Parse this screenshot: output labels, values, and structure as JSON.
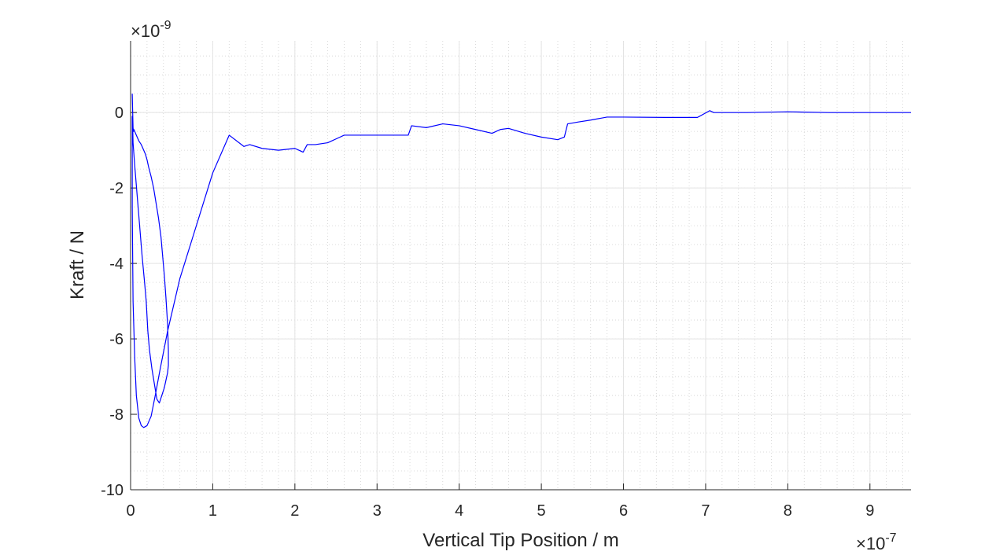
{
  "chart_data": {
    "type": "line",
    "title": "",
    "xlabel": "Vertical Tip Position / m",
    "ylabel": "Kraft / N",
    "x_multiplier": "×10",
    "x_exponent": "-7",
    "y_multiplier": "×10",
    "y_exponent": "-9",
    "xlim": [
      0,
      9.5
    ],
    "ylim": [
      -10,
      1.9
    ],
    "xticks": [
      0,
      1,
      2,
      3,
      4,
      5,
      6,
      7,
      8,
      9
    ],
    "xtick_labels": [
      "0",
      "1",
      "2",
      "3",
      "4",
      "5",
      "6",
      "7",
      "8",
      "9"
    ],
    "yticks": [
      -10,
      -8,
      -6,
      -4,
      -2,
      0
    ],
    "ytick_labels": [
      "-10",
      "-8",
      "-6",
      "-4",
      "-2",
      "0"
    ],
    "grid": true,
    "minor_grid": true,
    "line_color": "#0000ff",
    "series": [
      {
        "x": [
          0.02,
          0.03,
          0.035,
          0.04,
          0.05,
          0.07,
          0.1,
          0.13,
          0.16,
          0.18,
          0.2,
          0.22,
          0.25,
          0.28,
          0.31,
          0.34,
          0.37,
          0.39,
          0.41,
          0.43,
          0.45,
          0.46,
          0.46,
          0.45,
          0.43,
          0.41,
          0.38,
          0.35,
          0.32,
          0.29,
          0.26,
          0.23,
          0.21,
          0.2,
          0.19,
          0.17,
          0.14,
          0.11,
          0.08,
          0.05,
          0.03,
          0.025,
          0.02,
          0.02,
          0.03,
          0.05,
          0.07,
          0.1,
          0.13,
          0.16,
          0.2,
          0.25,
          0.3,
          0.36,
          0.45,
          0.6,
          0.8,
          1.0,
          1.2,
          1.38,
          1.45,
          1.6,
          1.8,
          2.0,
          2.1,
          2.15,
          2.25,
          2.4,
          2.55,
          2.6,
          2.7,
          3.0,
          3.2,
          3.38,
          3.42,
          3.6,
          3.8,
          4.0,
          4.2,
          4.4,
          4.5,
          4.6,
          4.8,
          5.0,
          5.2,
          5.28,
          5.32,
          5.45,
          5.6,
          5.8,
          6.0,
          6.5,
          6.9,
          7.05,
          7.1,
          7.5,
          8.0,
          8.5,
          9.0,
          9.5
        ],
        "y": [
          0.5,
          -0.4,
          -0.5,
          -0.45,
          -0.5,
          -0.6,
          -0.75,
          -0.85,
          -1.0,
          -1.1,
          -1.25,
          -1.45,
          -1.7,
          -2.0,
          -2.4,
          -2.8,
          -3.3,
          -3.8,
          -4.3,
          -4.9,
          -5.6,
          -6.3,
          -6.7,
          -6.9,
          -7.1,
          -7.3,
          -7.5,
          -7.7,
          -7.6,
          -7.2,
          -6.8,
          -6.3,
          -5.8,
          -5.4,
          -5.0,
          -4.5,
          -3.8,
          -3.0,
          -2.2,
          -1.4,
          -0.8,
          -0.3,
          -0.1,
          -2.5,
          -5.0,
          -6.5,
          -7.5,
          -8.1,
          -8.3,
          -8.35,
          -8.3,
          -8.05,
          -7.5,
          -6.8,
          -5.8,
          -4.4,
          -3.0,
          -1.6,
          -0.6,
          -0.9,
          -0.85,
          -0.95,
          -1.0,
          -0.95,
          -1.05,
          -0.85,
          -0.85,
          -0.8,
          -0.65,
          -0.6,
          -0.6,
          -0.6,
          -0.6,
          -0.6,
          -0.35,
          -0.4,
          -0.3,
          -0.35,
          -0.45,
          -0.55,
          -0.45,
          -0.42,
          -0.55,
          -0.65,
          -0.72,
          -0.65,
          -0.3,
          -0.25,
          -0.2,
          -0.12,
          -0.12,
          -0.13,
          -0.13,
          0.05,
          0.0,
          0.0,
          0.02,
          0.0,
          0.0,
          0.0
        ]
      }
    ]
  }
}
